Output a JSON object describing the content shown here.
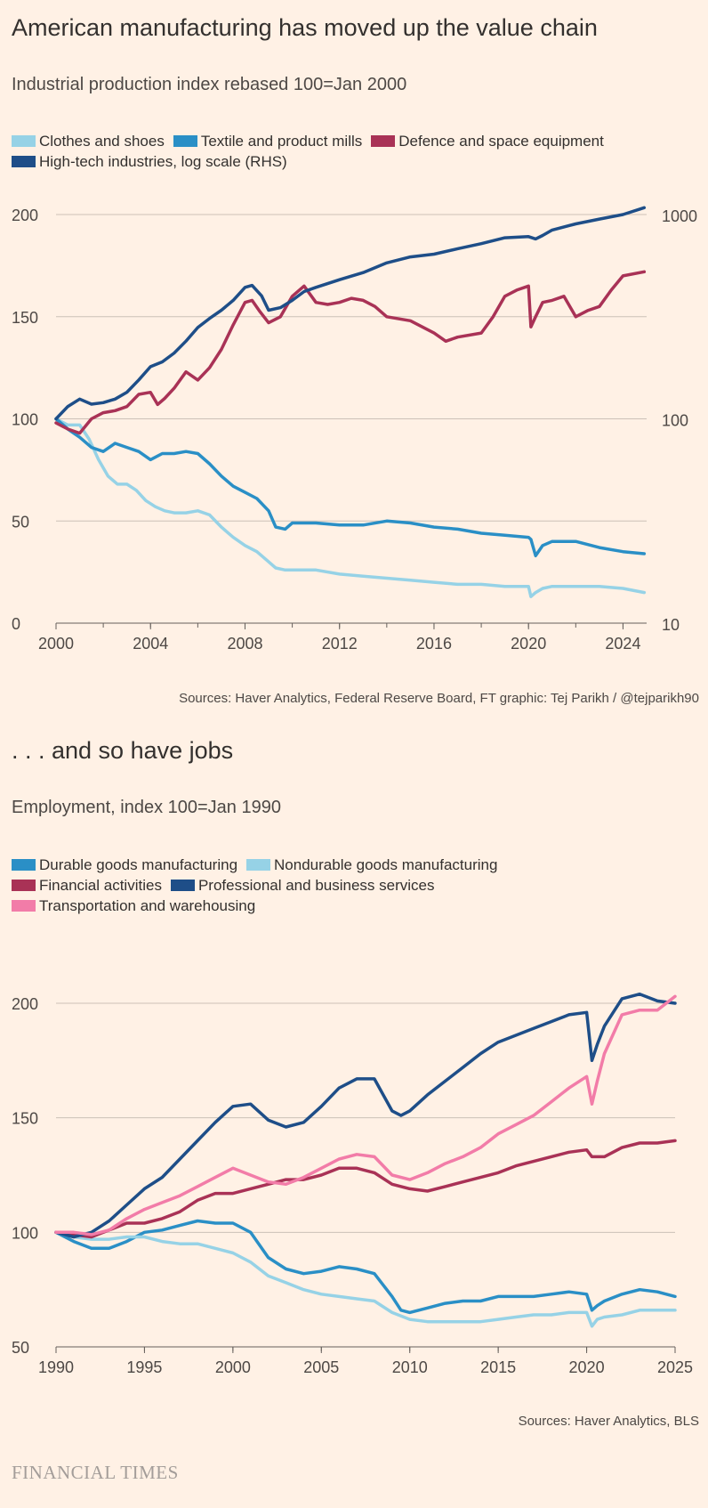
{
  "chart_data": [
    {
      "type": "line",
      "title": "American manufacturing has moved up the value chain",
      "subtitle": "Industrial production index rebased 100=Jan 2000",
      "source": "Sources: Haver Analytics, Federal Reserve Board, FT graphic: Tej Parikh / @tejparikh90",
      "xlim": [
        2000,
        2025
      ],
      "x_ticks": [
        "2000",
        "2004",
        "2008",
        "2012",
        "2016",
        "2020",
        "2024"
      ],
      "ylim": [
        0,
        200
      ],
      "y_ticks": [
        "0",
        "50",
        "100",
        "150",
        "200"
      ],
      "y2_scale": "log",
      "y2lim": [
        10,
        1000
      ],
      "y2_ticks": [
        "10",
        "100",
        "1000"
      ],
      "grid": true,
      "legend": "top",
      "series": [
        {
          "name": "Clothes and shoes",
          "color": "#96D2E6",
          "axis": "left",
          "x": [
            2000,
            2000.5,
            2001,
            2001.4,
            2001.8,
            2002.2,
            2002.6,
            2003,
            2003.4,
            2003.8,
            2004.2,
            2004.6,
            2005,
            2005.5,
            2006,
            2006.5,
            2007,
            2007.5,
            2008,
            2008.5,
            2009,
            2009.3,
            2009.7,
            2010,
            2011,
            2012,
            2013,
            2014,
            2015,
            2016,
            2017,
            2018,
            2019,
            2020,
            2020.1,
            2020.3,
            2020.6,
            2021,
            2022,
            2023,
            2024,
            2024.9
          ],
          "y": [
            100,
            97,
            97,
            90,
            80,
            72,
            68,
            68,
            65,
            60,
            57,
            55,
            54,
            54,
            55,
            53,
            47,
            42,
            38,
            35,
            30,
            27,
            26,
            26,
            26,
            24,
            23,
            22,
            21,
            20,
            19,
            19,
            18,
            18,
            13,
            15,
            17,
            18,
            18,
            18,
            17,
            15
          ]
        },
        {
          "name": "Textile and product mills",
          "color": "#2A8FC6",
          "axis": "left",
          "x": [
            2000,
            2000.5,
            2001,
            2001.5,
            2002,
            2002.5,
            2003,
            2003.5,
            2004,
            2004.5,
            2005,
            2005.5,
            2006,
            2006.5,
            2007,
            2007.5,
            2008,
            2008.5,
            2009,
            2009.3,
            2009.7,
            2010,
            2010.5,
            2011,
            2012,
            2013,
            2014,
            2015,
            2016,
            2017,
            2018,
            2019,
            2020,
            2020.1,
            2020.3,
            2020.6,
            2021,
            2022,
            2023,
            2024,
            2024.9
          ],
          "y": [
            100,
            95,
            91,
            86,
            84,
            88,
            86,
            84,
            80,
            83,
            83,
            84,
            83,
            78,
            72,
            67,
            64,
            61,
            55,
            47,
            46,
            49,
            49,
            49,
            48,
            48,
            50,
            49,
            47,
            46,
            44,
            43,
            42,
            41,
            33,
            38,
            40,
            40,
            37,
            35,
            34
          ]
        },
        {
          "name": "Defence and space equipment",
          "color": "#A93256",
          "axis": "left",
          "x": [
            2000,
            2000.5,
            2001,
            2001.5,
            2002,
            2002.5,
            2003,
            2003.5,
            2004,
            2004.3,
            2004.6,
            2005,
            2005.5,
            2006,
            2006.5,
            2007,
            2007.5,
            2008,
            2008.3,
            2008.6,
            2009,
            2009.5,
            2010,
            2010.5,
            2011,
            2011.5,
            2012,
            2012.5,
            2013,
            2013.5,
            2014,
            2015,
            2016,
            2016.5,
            2017,
            2018,
            2018.5,
            2019,
            2019.5,
            2020,
            2020.1,
            2020.3,
            2020.6,
            2021,
            2021.5,
            2022,
            2022.5,
            2023,
            2023.5,
            2024,
            2024.9
          ],
          "y": [
            98,
            95,
            93,
            100,
            103,
            104,
            106,
            112,
            113,
            107,
            110,
            115,
            123,
            119,
            125,
            134,
            146,
            157,
            158,
            153,
            147,
            150,
            160,
            165,
            157,
            156,
            157,
            159,
            158,
            155,
            150,
            148,
            142,
            138,
            140,
            142,
            150,
            160,
            163,
            165,
            145,
            150,
            157,
            158,
            160,
            150,
            153,
            155,
            163,
            170,
            172
          ]
        },
        {
          "name": "High-tech industries, log scale (RHS)",
          "color": "#1E4E88",
          "axis": "right",
          "x": [
            2000,
            2000.5,
            2001,
            2001.5,
            2002,
            2002.5,
            2003,
            2003.5,
            2004,
            2004.5,
            2005,
            2005.5,
            2006,
            2006.5,
            2007,
            2007.5,
            2008,
            2008.3,
            2008.7,
            2009,
            2009.5,
            2010,
            2010.5,
            2011,
            2012,
            2013,
            2014,
            2015,
            2016,
            2017,
            2018,
            2019,
            2020,
            2020.3,
            2020.6,
            2021,
            2022,
            2023,
            2024,
            2024.9
          ],
          "y": [
            100,
            115,
            125,
            118,
            120,
            125,
            135,
            155,
            180,
            190,
            210,
            240,
            280,
            310,
            340,
            380,
            440,
            450,
            400,
            340,
            350,
            380,
            420,
            440,
            480,
            520,
            580,
            620,
            640,
            680,
            720,
            770,
            780,
            760,
            790,
            840,
            900,
            950,
            1000,
            1080
          ]
        }
      ]
    },
    {
      "type": "line",
      "title": ". . . and so have jobs",
      "subtitle": "Employment, index 100=Jan 1990",
      "source": "Sources: Haver Analytics, BLS",
      "xlim": [
        1990,
        2025
      ],
      "x_ticks": [
        "1990",
        "1995",
        "2000",
        "2005",
        "2010",
        "2015",
        "2020",
        "2025"
      ],
      "ylim": [
        50,
        200
      ],
      "y_ticks": [
        "50",
        "100",
        "150",
        "200"
      ],
      "grid": true,
      "legend": "top",
      "series": [
        {
          "name": "Durable goods manufacturing",
          "color": "#2A8FC6",
          "x": [
            1990,
            1991,
            1992,
            1993,
            1994,
            1995,
            1996,
            1997,
            1998,
            1999,
            2000,
            2001,
            2002,
            2003,
            2004,
            2005,
            2006,
            2007,
            2008,
            2009,
            2009.5,
            2010,
            2011,
            2012,
            2013,
            2014,
            2015,
            2016,
            2017,
            2018,
            2019,
            2020,
            2020.3,
            2020.6,
            2021,
            2022,
            2023,
            2024,
            2025
          ],
          "y": [
            100,
            96,
            93,
            93,
            96,
            100,
            101,
            103,
            105,
            104,
            104,
            100,
            89,
            84,
            82,
            83,
            85,
            84,
            82,
            72,
            66,
            65,
            67,
            69,
            70,
            70,
            72,
            72,
            72,
            73,
            74,
            73,
            66,
            68,
            70,
            73,
            75,
            74,
            72
          ]
        },
        {
          "name": "Nondurable goods manufacturing",
          "color": "#96D2E6",
          "x": [
            1990,
            1991,
            1992,
            1993,
            1994,
            1995,
            1996,
            1997,
            1998,
            1999,
            2000,
            2001,
            2002,
            2003,
            2004,
            2005,
            2006,
            2007,
            2008,
            2009,
            2010,
            2011,
            2012,
            2013,
            2014,
            2015,
            2016,
            2017,
            2018,
            2019,
            2020,
            2020.3,
            2020.6,
            2021,
            2022,
            2023,
            2024,
            2025
          ],
          "y": [
            100,
            98,
            97,
            97,
            98,
            98,
            96,
            95,
            95,
            93,
            91,
            87,
            81,
            78,
            75,
            73,
            72,
            71,
            70,
            65,
            62,
            61,
            61,
            61,
            61,
            62,
            63,
            64,
            64,
            65,
            65,
            59,
            62,
            63,
            64,
            66,
            66,
            66
          ]
        },
        {
          "name": "Financial activities",
          "color": "#A93256",
          "x": [
            1990,
            1991,
            1992,
            1993,
            1994,
            1995,
            1996,
            1997,
            1998,
            1999,
            2000,
            2001,
            2002,
            2003,
            2004,
            2005,
            2006,
            2007,
            2008,
            2009,
            2010,
            2011,
            2012,
            2013,
            2014,
            2015,
            2016,
            2017,
            2018,
            2019,
            2020,
            2020.3,
            2020.6,
            2021,
            2022,
            2023,
            2024,
            2025
          ],
          "y": [
            100,
            99,
            98,
            101,
            104,
            104,
            106,
            109,
            114,
            117,
            117,
            119,
            121,
            123,
            123,
            125,
            128,
            128,
            126,
            121,
            119,
            118,
            120,
            122,
            124,
            126,
            129,
            131,
            133,
            135,
            136,
            133,
            133,
            133,
            137,
            139,
            139,
            140
          ]
        },
        {
          "name": "Professional and business services",
          "color": "#1E4E88",
          "x": [
            1990,
            1991,
            1992,
            1993,
            1994,
            1995,
            1996,
            1997,
            1998,
            1999,
            2000,
            2001,
            2002,
            2003,
            2004,
            2005,
            2006,
            2007,
            2008,
            2009,
            2009.5,
            2010,
            2011,
            2012,
            2013,
            2014,
            2015,
            2016,
            2017,
            2018,
            2019,
            2020,
            2020.3,
            2020.6,
            2021,
            2022,
            2023,
            2024,
            2025
          ],
          "y": [
            100,
            98,
            100,
            105,
            112,
            119,
            124,
            132,
            140,
            148,
            155,
            156,
            149,
            146,
            148,
            155,
            163,
            167,
            167,
            153,
            151,
            153,
            160,
            166,
            172,
            178,
            183,
            186,
            189,
            192,
            195,
            196,
            175,
            182,
            190,
            202,
            204,
            201,
            200
          ]
        },
        {
          "name": "Transportation and warehousing",
          "color": "#F27CA8",
          "x": [
            1990,
            1991,
            1992,
            1993,
            1994,
            1995,
            1996,
            1997,
            1998,
            1999,
            2000,
            2001,
            2002,
            2003,
            2004,
            2005,
            2006,
            2007,
            2008,
            2009,
            2010,
            2011,
            2012,
            2013,
            2014,
            2015,
            2016,
            2017,
            2018,
            2019,
            2020,
            2020.3,
            2020.6,
            2021,
            2022,
            2023,
            2024,
            2025
          ],
          "y": [
            100,
            100,
            99,
            101,
            106,
            110,
            113,
            116,
            120,
            124,
            128,
            125,
            122,
            121,
            124,
            128,
            132,
            134,
            133,
            125,
            123,
            126,
            130,
            133,
            137,
            143,
            147,
            151,
            157,
            163,
            168,
            156,
            166,
            178,
            195,
            197,
            197,
            203
          ]
        }
      ]
    }
  ],
  "footer": {
    "brand": "FINANCIAL TIMES"
  }
}
